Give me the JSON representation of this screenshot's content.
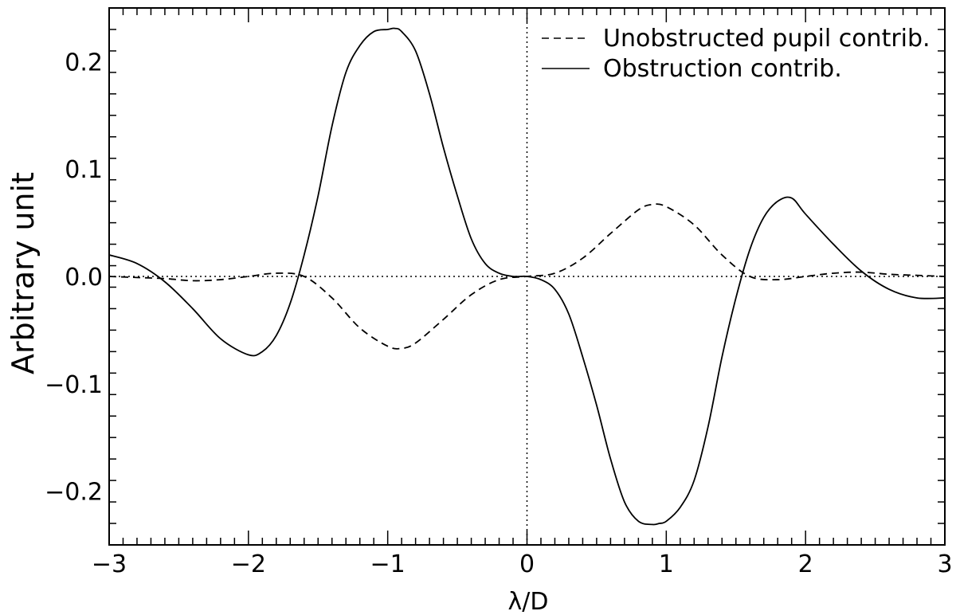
{
  "chart_data": {
    "type": "line",
    "xlabel": "λ/D",
    "ylabel": "Arbitrary unit",
    "xlim": [
      -3,
      3
    ],
    "ylim": [
      -0.25,
      0.25
    ],
    "x_ticks": [
      -3,
      -2,
      -1,
      0,
      1,
      2,
      3
    ],
    "x_tick_labels": [
      "−3",
      "−2",
      "−1",
      "0",
      "1",
      "2",
      "3"
    ],
    "y_ticks": [
      -0.2,
      -0.1,
      0.0,
      0.1,
      0.2
    ],
    "y_tick_labels": [
      "−0.2",
      "−0.1",
      "0.0",
      "0.1",
      "0.2"
    ],
    "grid": false,
    "legend_position": "top-right",
    "reference_lines": {
      "horizontal_y": 0,
      "vertical_x": 0,
      "style": "dotted"
    },
    "series": [
      {
        "name": "Unobstructed pupil contrib.",
        "style": "dashed",
        "color": "#000000",
        "x": [
          -3.0,
          -2.8,
          -2.6,
          -2.4,
          -2.2,
          -2.0,
          -1.8,
          -1.6,
          -1.4,
          -1.2,
          -1.0,
          -0.9,
          -0.8,
          -0.6,
          -0.4,
          -0.2,
          0.0,
          0.2,
          0.4,
          0.6,
          0.8,
          0.9,
          1.0,
          1.2,
          1.4,
          1.6,
          1.8,
          2.0,
          2.2,
          2.4,
          2.6,
          2.8,
          3.0
        ],
        "y": [
          0.0,
          -0.001,
          -0.002,
          -0.004,
          -0.003,
          0.0,
          0.003,
          0.0,
          -0.02,
          -0.048,
          -0.065,
          -0.067,
          -0.062,
          -0.04,
          -0.017,
          -0.003,
          0.0,
          0.003,
          0.017,
          0.04,
          0.062,
          0.067,
          0.065,
          0.048,
          0.02,
          0.0,
          -0.003,
          0.0,
          0.003,
          0.004,
          0.002,
          0.001,
          0.0
        ]
      },
      {
        "name": "Obstruction contrib.",
        "style": "solid",
        "color": "#000000",
        "x": [
          -3.0,
          -2.8,
          -2.6,
          -2.4,
          -2.2,
          -2.0,
          -1.9,
          -1.8,
          -1.7,
          -1.6,
          -1.5,
          -1.4,
          -1.3,
          -1.2,
          -1.1,
          -1.0,
          -0.95,
          -0.9,
          -0.8,
          -0.7,
          -0.6,
          -0.5,
          -0.4,
          -0.3,
          -0.2,
          -0.1,
          0.0,
          0.1,
          0.2,
          0.3,
          0.4,
          0.5,
          0.6,
          0.7,
          0.8,
          0.9,
          0.95,
          1.0,
          1.1,
          1.2,
          1.3,
          1.4,
          1.5,
          1.6,
          1.7,
          1.8,
          1.9,
          2.0,
          2.2,
          2.4,
          2.6,
          2.8,
          3.0
        ],
        "y": [
          0.02,
          0.012,
          -0.005,
          -0.03,
          -0.058,
          -0.073,
          -0.07,
          -0.055,
          -0.025,
          0.02,
          0.075,
          0.14,
          0.19,
          0.215,
          0.228,
          0.23,
          0.231,
          0.228,
          0.21,
          0.17,
          0.12,
          0.075,
          0.035,
          0.012,
          0.003,
          0.0,
          0.0,
          -0.003,
          -0.012,
          -0.035,
          -0.075,
          -0.12,
          -0.17,
          -0.21,
          -0.228,
          -0.231,
          -0.23,
          -0.228,
          -0.215,
          -0.19,
          -0.14,
          -0.075,
          -0.02,
          0.025,
          0.055,
          0.07,
          0.073,
          0.058,
          0.03,
          0.005,
          -0.012,
          -0.02,
          -0.02
        ]
      }
    ]
  }
}
